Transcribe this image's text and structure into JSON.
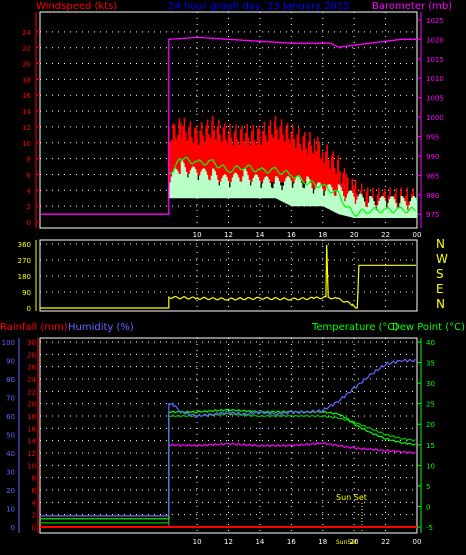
{
  "header": {
    "wind_label": "Windspeed (kts)",
    "title": "24 hour graph day, 23 January 2015",
    "baro_label": "Barometer (mb)",
    "rain_label": "Rainfall (mm)",
    "humidity_label": "Humidity (%)",
    "temp_label": "Temperature (°C)",
    "dew_label": "Dew Point (°C)",
    "sunset_label": "Sun Set",
    "sunset_tick": "SunSet"
  },
  "colors": {
    "wind_gust": "#ff0000",
    "wind_avg": "#ffffff",
    "wind_avg_alt": "#b8ffc8",
    "wind_green": "#00ff00",
    "barometer": "#ff00ff",
    "wind_dir": "#ffff00",
    "temperature": "#00ff00",
    "dew_point": "#00c000",
    "humidity": "#6464ff",
    "rainfall": "#ff0000",
    "axis_left_red": "#ff0000",
    "axis_right_magenta": "#ff00ff",
    "title_blue": "#0000ff",
    "dir_axis": "#ffff00"
  },
  "chart_data": [
    {
      "type": "line",
      "name": "wind_baro",
      "x_ticks": [
        "10",
        "12",
        "14",
        "16",
        "18",
        "20",
        "22",
        "00"
      ],
      "x_hours": [
        10,
        12,
        14,
        16,
        18,
        20,
        22,
        24
      ],
      "xlim": [
        0,
        24
      ],
      "y_left_ticks": [
        "0",
        "2",
        "4",
        "6",
        "8",
        "10",
        "12",
        "14",
        "16",
        "18",
        "20",
        "22",
        "24"
      ],
      "ylim_left": [
        0,
        26
      ],
      "y_right_ticks": [
        "975",
        "980",
        "985",
        "990",
        "995",
        "1000",
        "1005",
        "1010",
        "1015",
        "1020",
        "1025"
      ],
      "ylim_right": [
        973,
        1026
      ],
      "barometer": {
        "x": [
          0,
          8.2,
          8.2,
          10,
          12,
          14,
          16,
          17.5,
          18.5,
          19,
          20,
          21,
          22,
          23,
          24
        ],
        "y": [
          975,
          975,
          1020,
          1020.5,
          1020,
          1019.5,
          1019,
          1019,
          1019,
          1018,
          1018.5,
          1019,
          1019.5,
          1020,
          1020
        ]
      },
      "wind_gust_band": {
        "x": [
          8.2,
          9,
          10,
          11,
          12,
          13,
          14,
          15,
          16,
          17,
          17.5,
          18,
          19,
          19.5,
          20,
          21,
          22,
          23,
          24
        ],
        "top": [
          11,
          12,
          11,
          12,
          11,
          11,
          11,
          12,
          11,
          10,
          10,
          9,
          7,
          5,
          4,
          3,
          3,
          3,
          3
        ],
        "bottom": [
          4,
          6,
          6,
          5,
          5,
          5,
          5,
          5,
          5,
          5,
          4,
          4,
          3,
          2,
          1,
          2,
          1,
          1,
          1
        ]
      },
      "wind_green": {
        "x": [
          8.2,
          9,
          10,
          11,
          12,
          13,
          14,
          15,
          16,
          17,
          18,
          19,
          19.5,
          20,
          21,
          22,
          23,
          24
        ],
        "y": [
          6,
          8,
          7.5,
          7.5,
          6.5,
          7,
          6.5,
          6.5,
          6,
          5,
          4.5,
          3.5,
          2,
          1,
          1.5,
          1.5,
          1.5,
          1.5
        ]
      },
      "wind_avg_band": {
        "x": [
          8.2,
          9,
          10,
          11,
          12,
          13,
          14,
          15,
          16,
          17,
          18,
          19,
          20,
          21,
          22,
          23,
          24
        ],
        "top": [
          4,
          6,
          5,
          5,
          4,
          5,
          4,
          4,
          4,
          4,
          3,
          3,
          2,
          1.5,
          1.5,
          1.5,
          1.5
        ],
        "bottom": [
          3,
          3,
          3,
          3,
          3,
          3,
          3,
          3,
          2,
          2,
          2,
          1,
          0.5,
          0.5,
          0.5,
          0.5,
          0.5
        ]
      }
    },
    {
      "type": "line",
      "name": "wind_direction",
      "y_ticks": [
        "0",
        "90",
        "180",
        "270",
        "360"
      ],
      "ylim": [
        0,
        360
      ],
      "dir_labels": [
        "N",
        "W",
        "S",
        "E",
        "N"
      ],
      "x": [
        0,
        8.2,
        8.2,
        10,
        12,
        14,
        16,
        17.5,
        18.2,
        18.25,
        18.35,
        19,
        19.9,
        20.1,
        20.2,
        20.3,
        20.4,
        24
      ],
      "y": [
        0,
        0,
        60,
        55,
        50,
        55,
        50,
        55,
        60,
        355,
        60,
        50,
        20,
        0,
        0,
        240,
        240,
        240
      ]
    },
    {
      "type": "line",
      "name": "temp_hum_rain",
      "x_ticks": [
        "10",
        "12",
        "14",
        "16",
        "18",
        "20",
        "22",
        "00"
      ],
      "y_hum_ticks": [
        "0",
        "10",
        "20",
        "30",
        "40",
        "50",
        "60",
        "70",
        "80",
        "90",
        "100"
      ],
      "ylim_hum": [
        0,
        100
      ],
      "y_rain_ticks": [
        "0",
        "2",
        "4",
        "6",
        "8",
        "10",
        "12",
        "14",
        "16",
        "18",
        "20",
        "22",
        "24",
        "26",
        "28",
        "30"
      ],
      "ylim_rain": [
        0,
        30
      ],
      "y_temp_ticks": [
        "-5",
        "0",
        "5",
        "10",
        "15",
        "20",
        "25",
        "30",
        "35",
        "40"
      ],
      "ylim_temp": [
        -5,
        40
      ],
      "humidity": {
        "x": [
          0,
          8.2,
          8.2,
          8.5,
          9,
          10,
          11,
          12,
          13,
          14,
          15,
          16,
          17,
          18,
          19,
          20,
          21,
          22,
          23,
          24
        ],
        "y": [
          6,
          6,
          67,
          66,
          62,
          60,
          61,
          62,
          61,
          62,
          61,
          62,
          62,
          63,
          68,
          75,
          82,
          88,
          90,
          90
        ]
      },
      "temperature": {
        "x": [
          0,
          8.2,
          8.2,
          9,
          10,
          12,
          14,
          16,
          18,
          19,
          19.5,
          20,
          21,
          22,
          23,
          24
        ],
        "y": [
          -3,
          -3,
          23,
          23,
          23,
          23.5,
          23,
          23,
          23,
          22.5,
          21.5,
          20,
          18,
          16.5,
          15.5,
          15
        ]
      },
      "dew_point": {
        "x": [
          0,
          8.2,
          8.2,
          10,
          12,
          14,
          16,
          18,
          19,
          20,
          21,
          22,
          23,
          24
        ],
        "y": [
          -4,
          -4,
          22,
          22,
          22.5,
          22,
          22,
          22,
          21.5,
          20.5,
          19,
          17.5,
          16.5,
          16
        ]
      },
      "rainfall": {
        "x": [
          0,
          8.2,
          8.2,
          10,
          12,
          14,
          16,
          18,
          19,
          20,
          21,
          22,
          23,
          24
        ],
        "y": [
          0,
          0,
          13.3,
          13.2,
          13.5,
          13.2,
          13.2,
          13.6,
          13.2,
          12.8,
          12.6,
          12.4,
          12.2,
          12
        ]
      },
      "sunset_hour": 20.5
    }
  ]
}
